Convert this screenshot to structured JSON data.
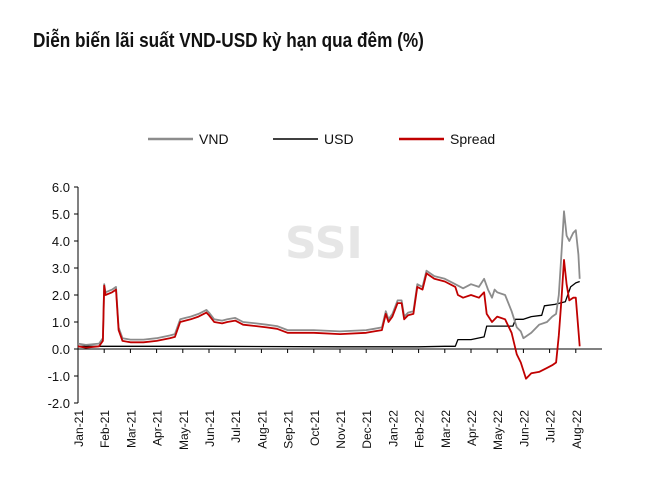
{
  "title": "Diễn biến lãi suất VND-USD kỳ hạn qua đêm (%)",
  "watermark": "SSI",
  "chart_data": {
    "type": "line",
    "title": "Diễn biến lãi suất VND-USD kỳ hạn qua đêm (%)",
    "xlabel": "",
    "ylabel": "",
    "ylim": [
      -2.0,
      6.0
    ],
    "yticks": [
      "6.0",
      "5.0",
      "4.0",
      "3.0",
      "2.0",
      "1.0",
      "0.0",
      "-1.0",
      "-2.0"
    ],
    "xticks": [
      "Jan-21",
      "Feb-21",
      "Mar-21",
      "Apr-21",
      "May-21",
      "Jun-21",
      "Jul-21",
      "Aug-21",
      "Sep-21",
      "Oct-21",
      "Nov-21",
      "Dec-21",
      "Jan-22",
      "Feb-22",
      "Mar-22",
      "Apr-22",
      "May-22",
      "Jun-22",
      "Jul-22",
      "Aug-22"
    ],
    "grid": false,
    "legend_position": "top",
    "series": [
      {
        "name": "VND",
        "color": "#8c8c8c",
        "points": [
          [
            0,
            0.2
          ],
          [
            0.3,
            0.15
          ],
          [
            0.8,
            0.2
          ],
          [
            0.95,
            0.4
          ],
          [
            1.0,
            2.4
          ],
          [
            1.05,
            2.1
          ],
          [
            1.3,
            2.2
          ],
          [
            1.45,
            2.3
          ],
          [
            1.55,
            0.8
          ],
          [
            1.7,
            0.4
          ],
          [
            2.0,
            0.35
          ],
          [
            2.5,
            0.35
          ],
          [
            3.0,
            0.4
          ],
          [
            3.5,
            0.5
          ],
          [
            3.7,
            0.55
          ],
          [
            3.9,
            1.1
          ],
          [
            4.1,
            1.15
          ],
          [
            4.3,
            1.2
          ],
          [
            4.6,
            1.3
          ],
          [
            4.9,
            1.45
          ],
          [
            5.0,
            1.35
          ],
          [
            5.2,
            1.1
          ],
          [
            5.5,
            1.05
          ],
          [
            5.7,
            1.1
          ],
          [
            6.0,
            1.15
          ],
          [
            6.3,
            1.0
          ],
          [
            6.8,
            0.95
          ],
          [
            7.2,
            0.9
          ],
          [
            7.6,
            0.85
          ],
          [
            8.0,
            0.7
          ],
          [
            9.0,
            0.7
          ],
          [
            10.0,
            0.65
          ],
          [
            11.0,
            0.7
          ],
          [
            11.3,
            0.75
          ],
          [
            11.6,
            0.8
          ],
          [
            11.75,
            1.4
          ],
          [
            11.85,
            1.1
          ],
          [
            12.0,
            1.3
          ],
          [
            12.2,
            1.8
          ],
          [
            12.35,
            1.8
          ],
          [
            12.45,
            1.2
          ],
          [
            12.6,
            1.35
          ],
          [
            12.8,
            1.4
          ],
          [
            12.95,
            2.4
          ],
          [
            13.15,
            2.3
          ],
          [
            13.3,
            2.9
          ],
          [
            13.6,
            2.7
          ],
          [
            14.0,
            2.6
          ],
          [
            14.4,
            2.4
          ],
          [
            14.7,
            2.25
          ],
          [
            15.0,
            2.4
          ],
          [
            15.3,
            2.3
          ],
          [
            15.5,
            2.6
          ],
          [
            15.65,
            2.2
          ],
          [
            15.8,
            1.9
          ],
          [
            15.9,
            2.2
          ],
          [
            16.0,
            2.1
          ],
          [
            16.3,
            2.0
          ],
          [
            16.55,
            1.4
          ],
          [
            16.75,
            0.8
          ],
          [
            16.9,
            0.65
          ],
          [
            17.0,
            0.4
          ],
          [
            17.3,
            0.6
          ],
          [
            17.6,
            0.9
          ],
          [
            17.9,
            1.0
          ],
          [
            18.1,
            1.2
          ],
          [
            18.25,
            1.3
          ],
          [
            18.35,
            2.0
          ],
          [
            18.45,
            3.5
          ],
          [
            18.55,
            5.1
          ],
          [
            18.65,
            4.2
          ],
          [
            18.75,
            4.0
          ],
          [
            18.9,
            4.3
          ],
          [
            19.0,
            4.4
          ],
          [
            19.1,
            3.5
          ],
          [
            19.15,
            2.6
          ]
        ]
      },
      {
        "name": "USD",
        "color": "#000000",
        "points": [
          [
            0,
            0.1
          ],
          [
            5.0,
            0.1
          ],
          [
            10.0,
            0.08
          ],
          [
            13.0,
            0.08
          ],
          [
            14.0,
            0.1
          ],
          [
            14.4,
            0.1
          ],
          [
            14.5,
            0.35
          ],
          [
            15.0,
            0.35
          ],
          [
            15.5,
            0.45
          ],
          [
            15.6,
            0.85
          ],
          [
            16.0,
            0.85
          ],
          [
            16.6,
            0.85
          ],
          [
            16.7,
            1.1
          ],
          [
            17.0,
            1.1
          ],
          [
            17.3,
            1.2
          ],
          [
            17.7,
            1.25
          ],
          [
            17.8,
            1.6
          ],
          [
            18.2,
            1.65
          ],
          [
            18.6,
            1.75
          ],
          [
            18.8,
            2.3
          ],
          [
            19.0,
            2.45
          ],
          [
            19.15,
            2.5
          ]
        ]
      },
      {
        "name": "Spread",
        "color": "#c00000",
        "points": [
          [
            0,
            0.1
          ],
          [
            0.3,
            0.05
          ],
          [
            0.8,
            0.1
          ],
          [
            0.95,
            0.3
          ],
          [
            1.0,
            2.35
          ],
          [
            1.05,
            2.0
          ],
          [
            1.3,
            2.1
          ],
          [
            1.45,
            2.2
          ],
          [
            1.55,
            0.7
          ],
          [
            1.7,
            0.3
          ],
          [
            2.0,
            0.25
          ],
          [
            2.5,
            0.25
          ],
          [
            3.0,
            0.3
          ],
          [
            3.5,
            0.4
          ],
          [
            3.7,
            0.45
          ],
          [
            3.9,
            1.0
          ],
          [
            4.1,
            1.05
          ],
          [
            4.3,
            1.1
          ],
          [
            4.6,
            1.2
          ],
          [
            4.9,
            1.35
          ],
          [
            5.0,
            1.25
          ],
          [
            5.2,
            1.0
          ],
          [
            5.5,
            0.95
          ],
          [
            5.7,
            1.0
          ],
          [
            6.0,
            1.05
          ],
          [
            6.3,
            0.9
          ],
          [
            6.8,
            0.85
          ],
          [
            7.2,
            0.8
          ],
          [
            7.6,
            0.75
          ],
          [
            8.0,
            0.6
          ],
          [
            9.0,
            0.6
          ],
          [
            10.0,
            0.55
          ],
          [
            11.0,
            0.6
          ],
          [
            11.3,
            0.65
          ],
          [
            11.6,
            0.7
          ],
          [
            11.75,
            1.3
          ],
          [
            11.85,
            1.0
          ],
          [
            12.0,
            1.2
          ],
          [
            12.2,
            1.7
          ],
          [
            12.35,
            1.7
          ],
          [
            12.45,
            1.1
          ],
          [
            12.6,
            1.25
          ],
          [
            12.8,
            1.3
          ],
          [
            12.95,
            2.3
          ],
          [
            13.15,
            2.2
          ],
          [
            13.3,
            2.8
          ],
          [
            13.6,
            2.6
          ],
          [
            14.0,
            2.5
          ],
          [
            14.4,
            2.3
          ],
          [
            14.5,
            2.0
          ],
          [
            14.7,
            1.9
          ],
          [
            15.0,
            2.0
          ],
          [
            15.3,
            1.9
          ],
          [
            15.5,
            2.1
          ],
          [
            15.6,
            1.3
          ],
          [
            15.8,
            1.0
          ],
          [
            16.0,
            1.2
          ],
          [
            16.3,
            1.1
          ],
          [
            16.55,
            0.6
          ],
          [
            16.75,
            -0.2
          ],
          [
            16.9,
            -0.5
          ],
          [
            17.0,
            -0.8
          ],
          [
            17.1,
            -1.1
          ],
          [
            17.3,
            -0.9
          ],
          [
            17.6,
            -0.85
          ],
          [
            17.9,
            -0.7
          ],
          [
            18.1,
            -0.6
          ],
          [
            18.25,
            -0.5
          ],
          [
            18.35,
            0.5
          ],
          [
            18.45,
            1.8
          ],
          [
            18.55,
            3.3
          ],
          [
            18.65,
            2.4
          ],
          [
            18.75,
            1.8
          ],
          [
            18.9,
            1.9
          ],
          [
            19.0,
            1.9
          ],
          [
            19.1,
            0.7
          ],
          [
            19.15,
            0.1
          ]
        ]
      }
    ]
  }
}
